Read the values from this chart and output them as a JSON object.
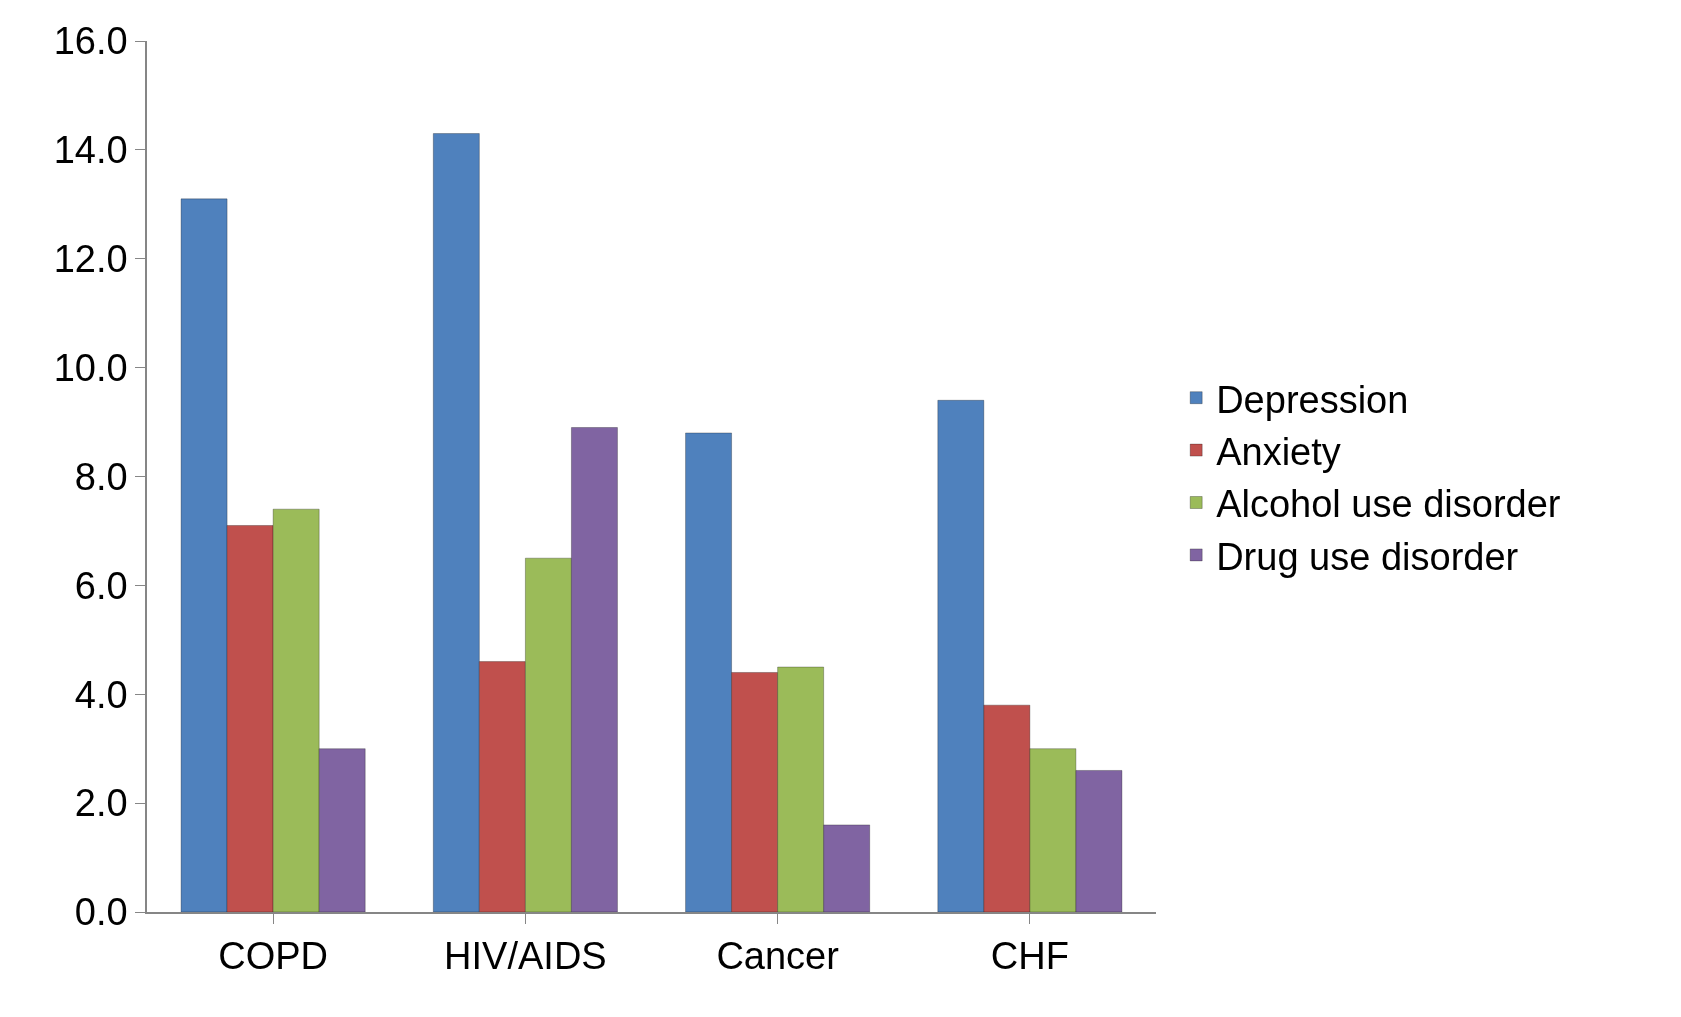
{
  "chart_data": {
    "type": "bar",
    "categories": [
      "COPD",
      "HIV/AIDS",
      "Cancer",
      "CHF"
    ],
    "series": [
      {
        "name": "Depression",
        "color": "#4f81bd",
        "values": [
          13.1,
          14.3,
          8.8,
          9.4
        ]
      },
      {
        "name": "Anxiety",
        "color": "#c0504d",
        "values": [
          7.1,
          4.6,
          4.4,
          3.8
        ]
      },
      {
        "name": "Alcohol use disorder",
        "color": "#9bbb59",
        "values": [
          7.4,
          6.5,
          4.5,
          3.0
        ]
      },
      {
        "name": "Drug use disorder",
        "color": "#8064a2",
        "values": [
          3.0,
          8.9,
          1.6,
          2.6
        ]
      }
    ],
    "ylim": [
      0,
      16
    ],
    "yticks": [
      {
        "value": 0,
        "label": "0.0"
      },
      {
        "value": 2,
        "label": "2.0"
      },
      {
        "value": 4,
        "label": "4.0"
      },
      {
        "value": 6,
        "label": "6.0"
      },
      {
        "value": 8,
        "label": "8.0"
      },
      {
        "value": 10,
        "label": "10.0"
      },
      {
        "value": 12,
        "label": "12.0"
      },
      {
        "value": 14,
        "label": "14.0"
      },
      {
        "value": 16,
        "label": "16.0"
      }
    ],
    "grid": false,
    "legend": "right"
  }
}
